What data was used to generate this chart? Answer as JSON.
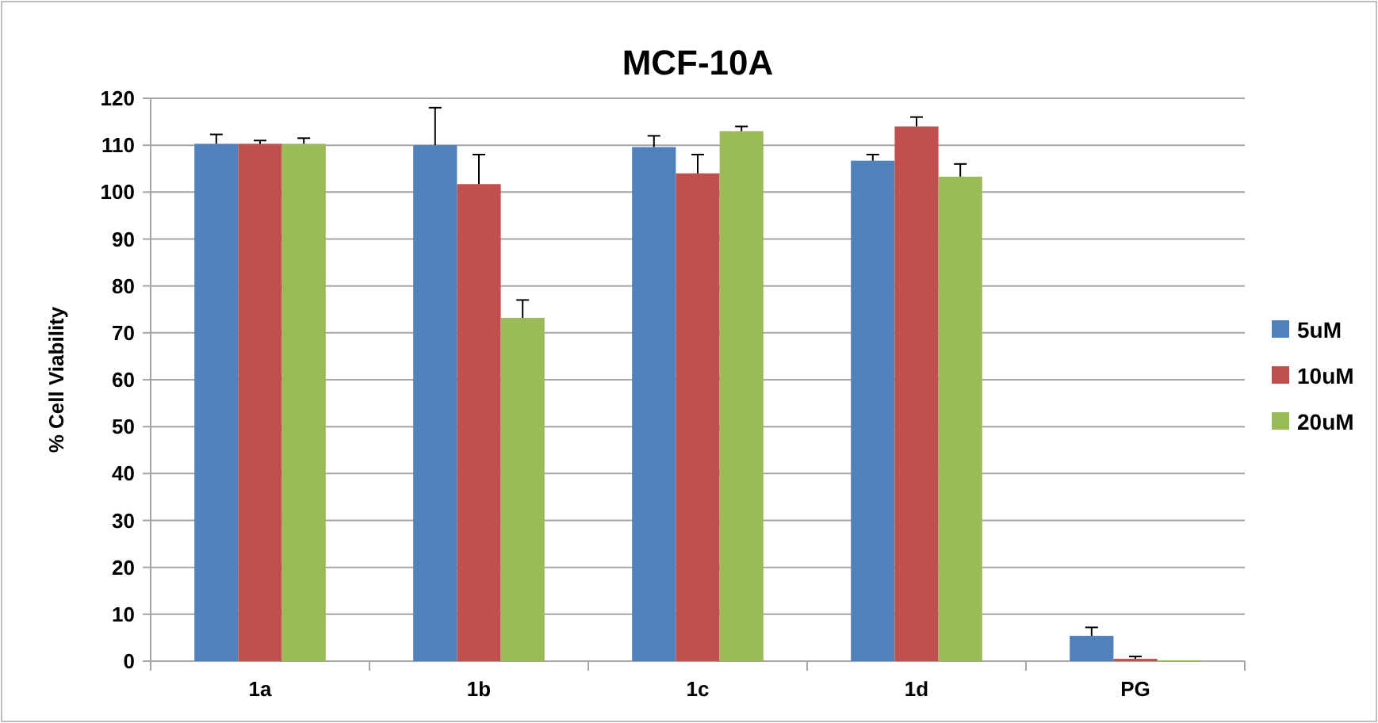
{
  "chart_data": {
    "type": "bar",
    "title": "MCF-10A",
    "ylabel": "% Cell Viability",
    "categories": [
      "1a",
      "1b",
      "1c",
      "1d",
      "PG"
    ],
    "series": [
      {
        "name": "5uM",
        "color": "#4f81bd",
        "values": [
          110.3,
          110,
          109.6,
          106.7,
          5.4
        ],
        "errors": [
          [
            110.3,
            112.3
          ],
          [
            110,
            118
          ],
          [
            109.6,
            112
          ],
          [
            106.7,
            108
          ],
          [
            5.4,
            7.2
          ]
        ]
      },
      {
        "name": "10uM",
        "color": "#c0504d",
        "values": [
          110.3,
          101.7,
          104,
          114,
          0.5
        ],
        "errors": [
          [
            110.3,
            111
          ],
          [
            101.7,
            108
          ],
          [
            104,
            108
          ],
          [
            114,
            116
          ],
          [
            0.5,
            1
          ]
        ]
      },
      {
        "name": "20uM",
        "color": "#9bbb59",
        "values": [
          110.3,
          73.2,
          113,
          103.3,
          0.2
        ],
        "errors": [
          [
            110.3,
            111.5
          ],
          [
            73.2,
            77
          ],
          [
            113,
            114
          ],
          [
            103.3,
            106
          ],
          null
        ]
      }
    ],
    "ylim": [
      0,
      120
    ],
    "yticks": [
      0,
      10,
      20,
      30,
      40,
      50,
      60,
      70,
      80,
      90,
      100,
      110,
      120
    ],
    "grid": "y",
    "legend": "right"
  }
}
